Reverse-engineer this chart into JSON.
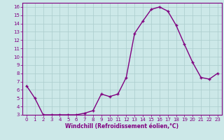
{
  "x": [
    0,
    1,
    2,
    3,
    4,
    5,
    6,
    7,
    8,
    9,
    10,
    11,
    12,
    13,
    14,
    15,
    16,
    17,
    18,
    19,
    20,
    21,
    22,
    23
  ],
  "y": [
    6.5,
    5.0,
    3.0,
    3.0,
    3.0,
    3.0,
    3.0,
    3.2,
    3.5,
    5.5,
    5.2,
    5.5,
    7.5,
    12.8,
    14.3,
    15.7,
    16.0,
    15.5,
    13.8,
    11.5,
    9.3,
    7.5,
    7.3,
    8.0
  ],
  "xlim": [
    -0.5,
    23.5
  ],
  "ylim": [
    3,
    16.5
  ],
  "yticks": [
    3,
    4,
    5,
    6,
    7,
    8,
    9,
    10,
    11,
    12,
    13,
    14,
    15,
    16
  ],
  "xticks": [
    0,
    1,
    2,
    3,
    4,
    5,
    6,
    7,
    8,
    9,
    10,
    11,
    12,
    13,
    14,
    15,
    16,
    17,
    18,
    19,
    20,
    21,
    22,
    23
  ],
  "line_color": "#800080",
  "marker": "+",
  "bg_color": "#cce8e8",
  "grid_color": "#aacccc",
  "xlabel": "Windchill (Refroidissement éolien,°C)",
  "axis_color": "#800080",
  "tick_fontsize": 5.0,
  "xlabel_fontsize": 5.5,
  "linewidth": 1.0,
  "markersize": 3.5
}
